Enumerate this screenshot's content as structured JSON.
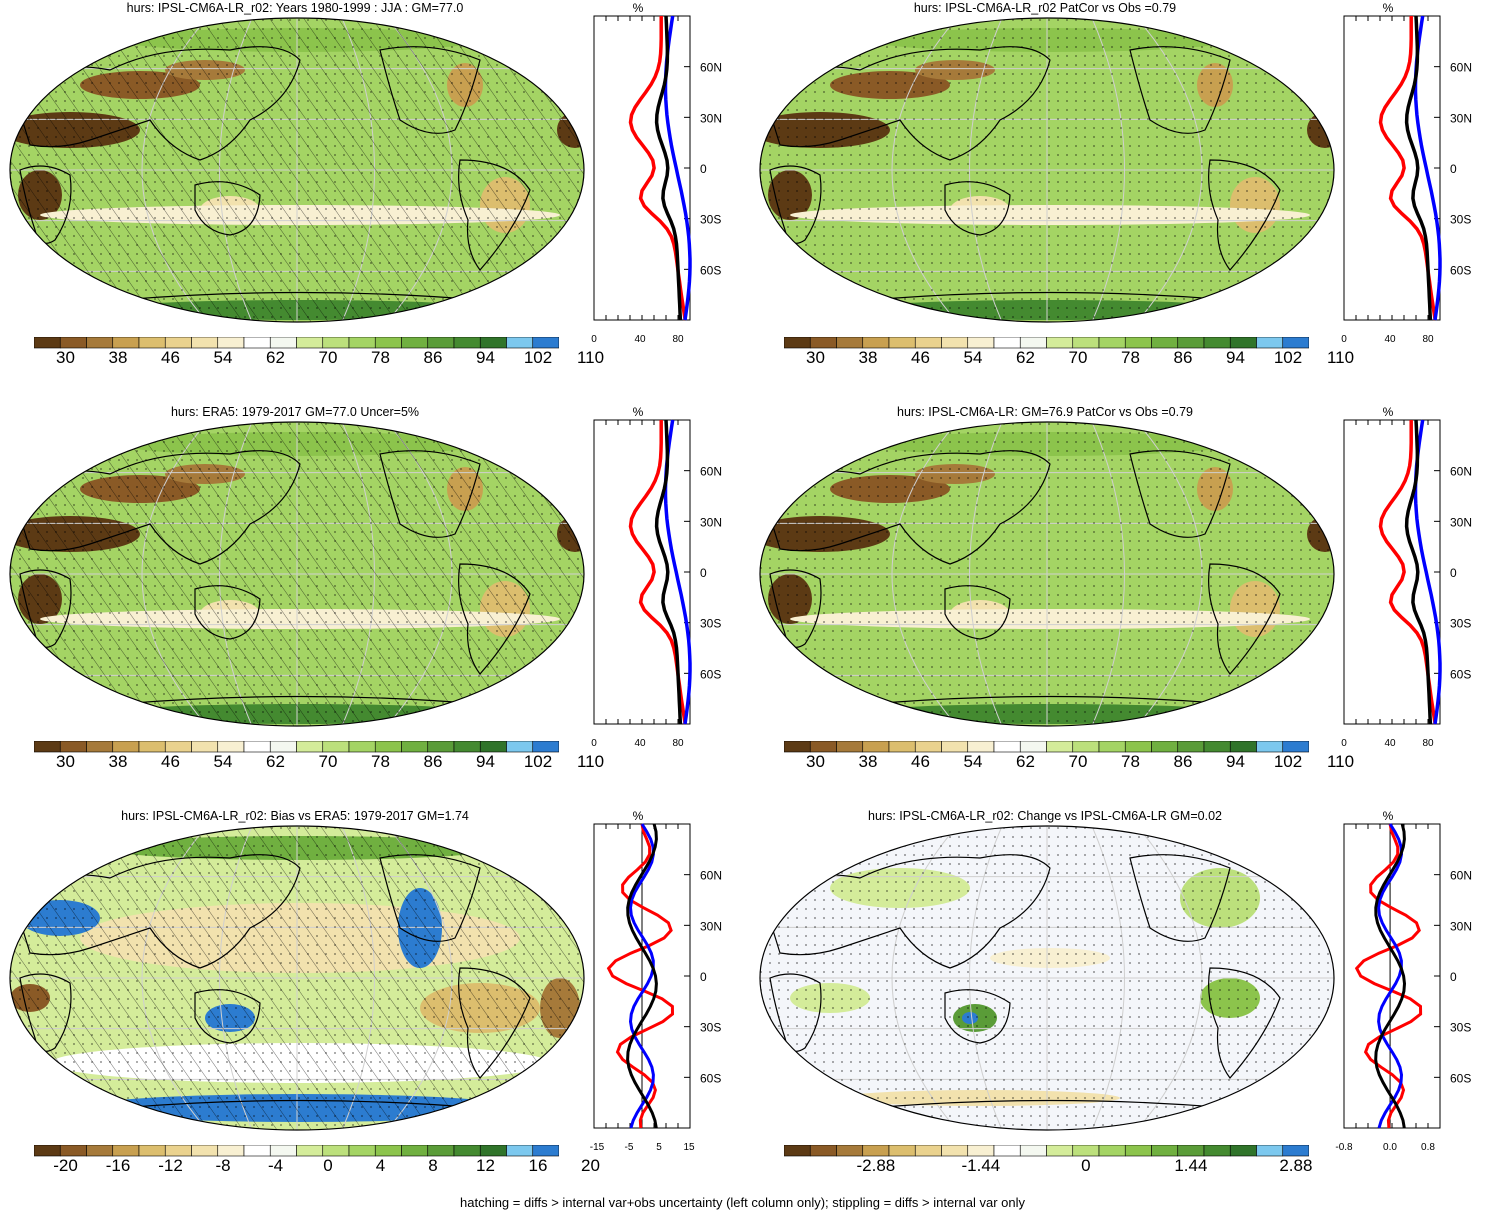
{
  "panels": [
    {
      "id": "p1",
      "title": "hurs: IPSL-CM6A-LR_r02: Years 1980-1999 : JJA : GM=77.0",
      "map_style": "brown-green",
      "overlay": "hatch",
      "colorbar": {
        "labels": [
          "30",
          "38",
          "46",
          "54",
          "62",
          "70",
          "78",
          "86",
          "94",
          "102",
          "110"
        ]
      },
      "profile": {
        "top_label": "%",
        "xticks": [
          "0",
          "40",
          "80"
        ],
        "lat_ticks": [
          "60N",
          "30N",
          "0",
          "30S",
          "60S"
        ]
      }
    },
    {
      "id": "p2",
      "title": "hurs: IPSL-CM6A-LR_r02 PatCor vs Obs =0.79",
      "map_style": "brown-green",
      "overlay": "none",
      "colorbar": {
        "labels": [
          "30",
          "38",
          "46",
          "54",
          "62",
          "70",
          "78",
          "86",
          "94",
          "102",
          "110"
        ]
      },
      "profile": {
        "top_label": "%",
        "xticks": [
          "0",
          "40",
          "80"
        ],
        "lat_ticks": [
          "60N",
          "30N",
          "0",
          "30S",
          "60S"
        ]
      }
    },
    {
      "id": "p3",
      "title": "hurs: ERA5: 1979-2017 GM=77.0 Uncer=5%",
      "map_style": "brown-green",
      "overlay": "hatch",
      "colorbar": {
        "labels": [
          "30",
          "38",
          "46",
          "54",
          "62",
          "70",
          "78",
          "86",
          "94",
          "102",
          "110"
        ]
      },
      "profile": {
        "top_label": "%",
        "xticks": [
          "0",
          "40",
          "80"
        ],
        "lat_ticks": [
          "60N",
          "30N",
          "0",
          "30S",
          "60S"
        ]
      }
    },
    {
      "id": "p4",
      "title": "hurs: IPSL-CM6A-LR: GM=76.9 PatCor vs Obs =0.79",
      "map_style": "brown-green",
      "overlay": "none",
      "colorbar": {
        "labels": [
          "30",
          "38",
          "46",
          "54",
          "62",
          "70",
          "78",
          "86",
          "94",
          "102",
          "110"
        ]
      },
      "profile": {
        "top_label": "%",
        "xticks": [
          "0",
          "40",
          "80"
        ],
        "lat_ticks": [
          "60N",
          "30N",
          "0",
          "30S",
          "60S"
        ]
      }
    },
    {
      "id": "p5",
      "title": "hurs: IPSL-CM6A-LR_r02: Bias vs ERA5: 1979-2017 GM=1.74",
      "map_style": "bias",
      "overlay": "hatch",
      "colorbar": {
        "labels": [
          "-20",
          "-16",
          "-12",
          "-8",
          "-4",
          "0",
          "4",
          "8",
          "12",
          "16",
          "20"
        ]
      },
      "profile": {
        "top_label": "%",
        "xticks": [
          "-15",
          "-5",
          "5",
          "15"
        ],
        "lat_ticks": [
          "60N",
          "30N",
          "0",
          "30S",
          "60S"
        ]
      }
    },
    {
      "id": "p6",
      "title": "hurs: IPSL-CM6A-LR_r02: Change vs IPSL-CM6A-LR GM=0.02",
      "map_style": "change",
      "overlay": "none",
      "colorbar": {
        "labels": [
          "-2.88",
          "-1.44",
          "0",
          "1.44",
          "2.88"
        ]
      },
      "profile": {
        "top_label": "%",
        "xticks": [
          "-0.8",
          "0.0",
          "0.8"
        ],
        "lat_ticks": [
          "60N",
          "30N",
          "0",
          "30S",
          "60S"
        ]
      }
    }
  ],
  "colorbar_colors": [
    "#5c3a14",
    "#8a5a26",
    "#a67a3a",
    "#c8a050",
    "#dcbe6e",
    "#ead28e",
    "#f2e2ae",
    "#f8f0d2",
    "#ffffff",
    "#f4f8f0",
    "#d4ec9a",
    "#bce07c",
    "#a4d464",
    "#8cc44c",
    "#70b040",
    "#5a9c38",
    "#448a30",
    "#30742a",
    "#7cc8ee",
    "#2c7cd0"
  ],
  "footer": "hatching = diffs > internal var+obs uncertainty (left column only); stippling = diffs > internal var only"
}
